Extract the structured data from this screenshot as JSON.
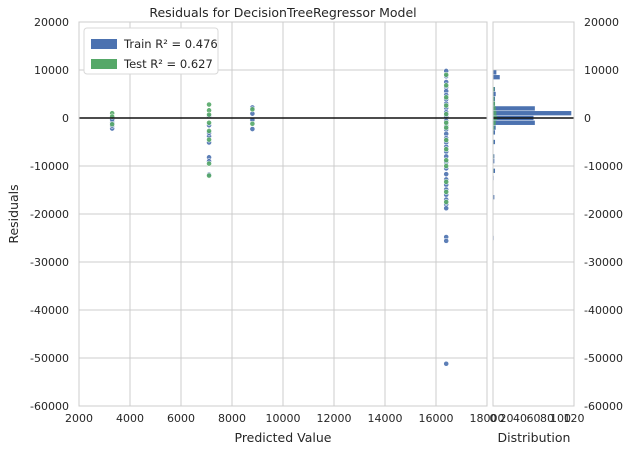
{
  "chart_data": {
    "type": "scatter",
    "title": "Residuals for DecisionTreeRegressor Model",
    "xlabel": "Predicted Value",
    "ylabel": "Residuals",
    "xlim": [
      2000,
      18000
    ],
    "ylim": [
      -60000,
      20000
    ],
    "x_ticks": [
      "2000",
      "4000",
      "6000",
      "8000",
      "10000",
      "12000",
      "14000",
      "16000",
      "18000"
    ],
    "y_ticks": [
      "20000",
      "10000",
      "0",
      "-10000",
      "-20000",
      "-30000",
      "-40000",
      "-50000",
      "-60000"
    ],
    "grid": true,
    "legend_position": "top-left",
    "series": [
      {
        "name": "Train R² = 0.476",
        "color": "#4c72b0",
        "points": [
          [
            3300,
            -2200
          ],
          [
            3300,
            -1600
          ],
          [
            3300,
            -900
          ],
          [
            3300,
            -300
          ],
          [
            7100,
            -8200
          ],
          [
            7100,
            -9000
          ],
          [
            7100,
            -3800
          ],
          [
            7100,
            -3100
          ],
          [
            7100,
            -5100
          ],
          [
            7100,
            -1500
          ],
          [
            7100,
            400
          ],
          [
            7100,
            -11800
          ],
          [
            8800,
            2200
          ],
          [
            8800,
            900
          ],
          [
            8800,
            -400
          ],
          [
            8800,
            -2300
          ],
          [
            16400,
            9800
          ],
          [
            16400,
            8700
          ],
          [
            16400,
            7500
          ],
          [
            16400,
            6400
          ],
          [
            16400,
            5600
          ],
          [
            16400,
            4800
          ],
          [
            16400,
            3900
          ],
          [
            16400,
            3000
          ],
          [
            16400,
            2100
          ],
          [
            16400,
            1200
          ],
          [
            16400,
            300
          ],
          [
            16400,
            -600
          ],
          [
            16400,
            -1500
          ],
          [
            16400,
            -2400
          ],
          [
            16400,
            -3300
          ],
          [
            16400,
            -4200
          ],
          [
            16400,
            -5100
          ],
          [
            16400,
            -6000
          ],
          [
            16400,
            -7000
          ],
          [
            16400,
            -8000
          ],
          [
            16400,
            -9200
          ],
          [
            16400,
            -10500
          ],
          [
            16400,
            -11700
          ],
          [
            16400,
            -12800
          ],
          [
            16400,
            -13900
          ],
          [
            16400,
            -14900
          ],
          [
            16400,
            -16000
          ],
          [
            16400,
            -17000
          ],
          [
            16400,
            -18000
          ],
          [
            16400,
            -18800
          ],
          [
            16400,
            -24800
          ],
          [
            16400,
            -25600
          ],
          [
            16400,
            -51200
          ]
        ]
      },
      {
        "name": "Test R² = 0.627",
        "color": "#55a868",
        "points": [
          [
            3300,
            1000
          ],
          [
            3300,
            300
          ],
          [
            3300,
            -1300
          ],
          [
            7100,
            2800
          ],
          [
            7100,
            1600
          ],
          [
            7100,
            700
          ],
          [
            7100,
            -1000
          ],
          [
            7100,
            -2700
          ],
          [
            7100,
            -4500
          ],
          [
            7100,
            -9500
          ],
          [
            7100,
            -12000
          ],
          [
            8800,
            1800
          ],
          [
            8800,
            -1200
          ],
          [
            16400,
            9000
          ],
          [
            16400,
            6800
          ],
          [
            16400,
            4300
          ],
          [
            16400,
            2600
          ],
          [
            16400,
            800
          ],
          [
            16400,
            -1000
          ],
          [
            16400,
            -2000
          ],
          [
            16400,
            -4600
          ],
          [
            16400,
            -6500
          ],
          [
            16400,
            -8800
          ],
          [
            16400,
            -10000
          ],
          [
            16400,
            -13300
          ],
          [
            16400,
            -15400
          ],
          [
            16400,
            -17500
          ]
        ]
      }
    ],
    "distribution": {
      "xlabel": "Distribution",
      "xlim": [
        0,
        120
      ],
      "x_ticks": [
        "0",
        "20",
        "40",
        "60",
        "80",
        "100",
        "120"
      ],
      "y_ticks": [
        "20000",
        "10000",
        "0",
        "-10000",
        "-20000",
        "-30000",
        "-40000",
        "-50000",
        "-60000"
      ],
      "bins": [
        {
          "y": 9500,
          "train": 5,
          "test": 0
        },
        {
          "y": 8500,
          "train": 10,
          "test": 0
        },
        {
          "y": 6000,
          "train": 3,
          "test": 2
        },
        {
          "y": 5000,
          "train": 4,
          "test": 1
        },
        {
          "y": 4000,
          "train": 3,
          "test": 2
        },
        {
          "y": 3000,
          "train": 3,
          "test": 3
        },
        {
          "y": 2000,
          "train": 62,
          "test": 4
        },
        {
          "y": 1000,
          "train": 116,
          "test": 5
        },
        {
          "y": 0,
          "train": 60,
          "test": 6
        },
        {
          "y": -1000,
          "train": 62,
          "test": 4
        },
        {
          "y": -2000,
          "train": 4,
          "test": 2
        },
        {
          "y": -3000,
          "train": 3,
          "test": 1
        },
        {
          "y": -5000,
          "train": 3,
          "test": 1
        },
        {
          "y": -8000,
          "train": 2,
          "test": 1
        },
        {
          "y": -9000,
          "train": 2,
          "test": 0
        },
        {
          "y": -11000,
          "train": 3,
          "test": 1
        },
        {
          "y": -12500,
          "train": 1,
          "test": 0
        },
        {
          "y": -16500,
          "train": 2,
          "test": 0
        },
        {
          "y": -25000,
          "train": 1,
          "test": 0
        }
      ]
    }
  }
}
